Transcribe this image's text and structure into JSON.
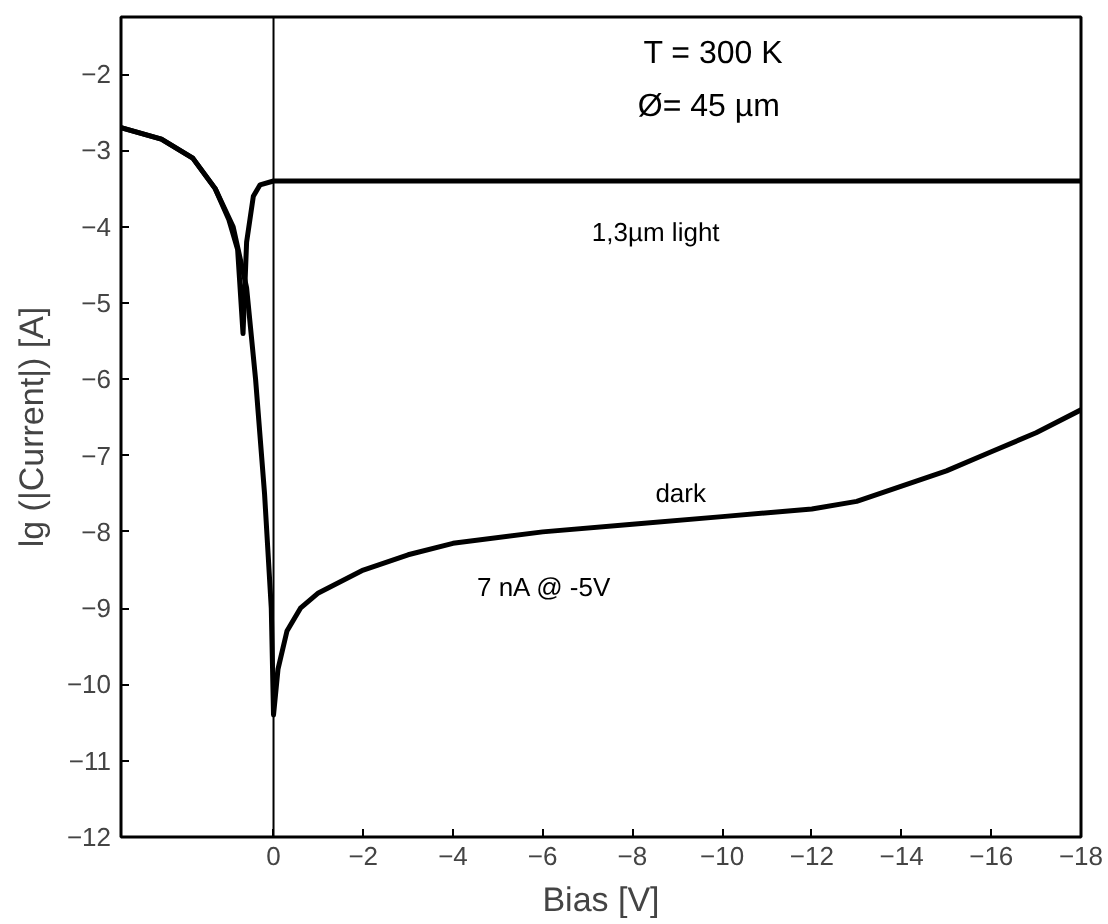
{
  "chart_data": {
    "type": "line",
    "xlabel": "Bias [V]",
    "ylabel": "lg (|Current|) [A]",
    "xlim": [
      3.4,
      -18
    ],
    "ylim": [
      -12,
      -1.25
    ],
    "xticks": [
      0,
      -2,
      -4,
      -6,
      -8,
      -10,
      -12,
      -14,
      -16,
      -18
    ],
    "yticks": [
      -2,
      -3,
      -4,
      -5,
      -6,
      -7,
      -8,
      -9,
      -10,
      -11,
      -12
    ],
    "grid": false,
    "marker": "none",
    "line_style": "solid",
    "ref_lines": [
      {
        "axis": "x",
        "value": 0,
        "color": "#000000"
      }
    ],
    "annotations": [
      "T = 300 K",
      "Ø=  45 µm",
      "1,3µm light",
      "dark",
      "7 nA @ -5V"
    ],
    "series": [
      {
        "color": "#000000",
        "x": [
          3.4,
          2.5,
          1.8,
          1.3,
          1.0,
          0.8,
          0.68,
          0.6,
          0.45,
          0.3,
          0,
          -18
        ],
        "values": [
          -2.7,
          -2.85,
          -3.1,
          -3.5,
          -3.9,
          -4.3,
          -5.4,
          -4.2,
          -3.6,
          -3.45,
          -3.4,
          -3.4
        ]
      },
      {
        "color": "#000000",
        "x": [
          3.4,
          2.5,
          1.8,
          1.3,
          0.9,
          0.6,
          0.4,
          0.2,
          0.05,
          0,
          -0.1,
          -0.3,
          -0.6,
          -1,
          -2,
          -3,
          -4,
          -6,
          -8,
          -10,
          -12,
          -13,
          -14,
          -15,
          -16,
          -17,
          -18
        ],
        "values": [
          -2.7,
          -2.85,
          -3.1,
          -3.5,
          -4.0,
          -4.8,
          -6.0,
          -7.5,
          -9.0,
          -10.4,
          -9.8,
          -9.3,
          -9.0,
          -8.8,
          -8.5,
          -8.3,
          -8.15,
          -8.0,
          -7.9,
          -7.8,
          -7.7,
          -7.6,
          -7.4,
          -7.2,
          -6.95,
          -6.7,
          -6.4
        ]
      }
    ]
  }
}
